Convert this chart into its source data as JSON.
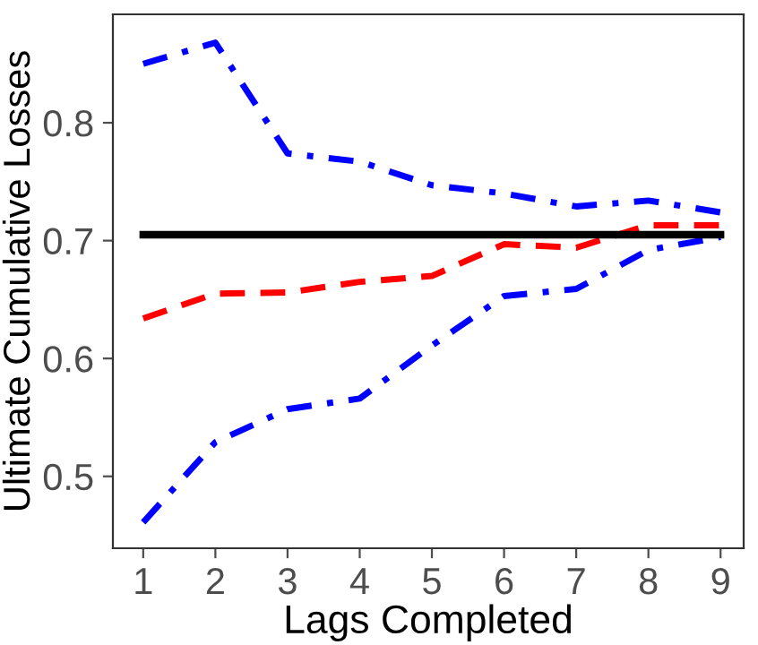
{
  "chart_data": {
    "type": "line",
    "xlabel": "Lags Completed",
    "ylabel": "Ultimate Cumulative Losses",
    "x": [
      1,
      2,
      3,
      4,
      5,
      6,
      7,
      8,
      9
    ],
    "series": [
      {
        "color": "#0000ff",
        "line_style": "dashdot",
        "values": [
          0.85,
          0.868,
          0.774,
          0.767,
          0.747,
          0.74,
          0.729,
          0.734,
          0.724
        ]
      },
      {
        "color": "#ff0000",
        "line_style": "dashed",
        "values": [
          0.634,
          0.655,
          0.656,
          0.665,
          0.67,
          0.697,
          0.694,
          0.713,
          0.713
        ]
      },
      {
        "color": "#0000ff",
        "line_style": "dashdot",
        "values": [
          0.461,
          0.529,
          0.557,
          0.566,
          0.611,
          0.653,
          0.659,
          0.692,
          0.703
        ]
      },
      {
        "color": "#000000",
        "line_style": "solid",
        "values": [
          0.705,
          0.705,
          0.705,
          0.705,
          0.705,
          0.705,
          0.705,
          0.705,
          0.705
        ]
      }
    ],
    "xlim": [
      0.58,
      9.32
    ],
    "ylim": [
      0.439,
      0.892
    ],
    "xticks": [
      1,
      2,
      3,
      4,
      5,
      6,
      7,
      8,
      9
    ],
    "yticks": [
      0.5,
      0.6,
      0.7,
      0.8
    ],
    "grid": false,
    "marker": "none"
  }
}
